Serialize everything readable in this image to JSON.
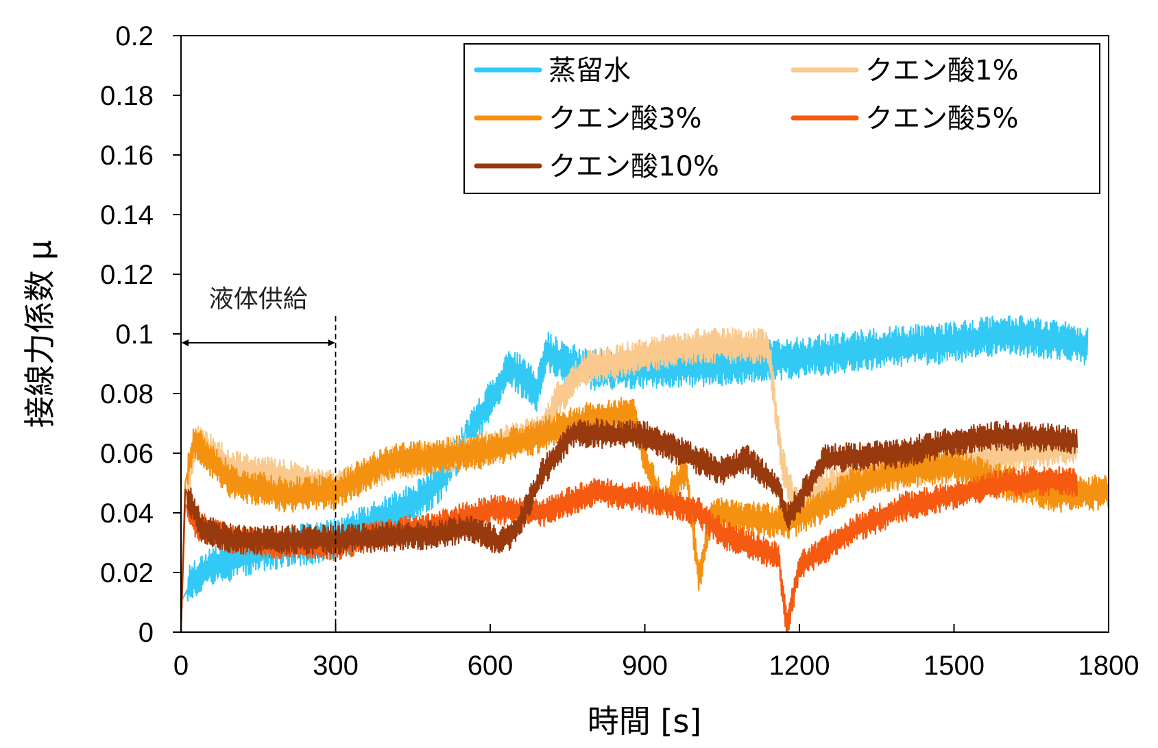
{
  "chart_data": {
    "type": "line",
    "xlabel": "時間 [s]",
    "ylabel": "接線力係数 μ",
    "xlim": [
      0,
      1800
    ],
    "ylim": [
      0,
      0.2
    ],
    "xticks": [
      "0",
      "300",
      "600",
      "900",
      "1200",
      "1500",
      "1800"
    ],
    "yticks": [
      "0",
      "0.02",
      "0.04",
      "0.06",
      "0.08",
      "0.1",
      "0.12",
      "0.14",
      "0.16",
      "0.18",
      "0.2"
    ],
    "grid": false,
    "legend_position": "top-right",
    "annotation": {
      "label": "液体供給",
      "x_start": 0,
      "x_end": 300,
      "y": 0.097
    },
    "series": [
      {
        "name": "蒸留水",
        "color": "#33c9f5",
        "noise": 0.007,
        "points": [
          [
            0,
            0.01
          ],
          [
            20,
            0.017
          ],
          [
            60,
            0.022
          ],
          [
            150,
            0.027
          ],
          [
            300,
            0.031
          ],
          [
            450,
            0.043
          ],
          [
            500,
            0.05
          ],
          [
            530,
            0.058
          ],
          [
            600,
            0.078
          ],
          [
            640,
            0.089
          ],
          [
            690,
            0.081
          ],
          [
            710,
            0.094
          ],
          [
            750,
            0.09
          ],
          [
            800,
            0.088
          ],
          [
            1000,
            0.089
          ],
          [
            1100,
            0.09
          ],
          [
            1200,
            0.092
          ],
          [
            1300,
            0.094
          ],
          [
            1400,
            0.096
          ],
          [
            1500,
            0.097
          ],
          [
            1600,
            0.1
          ],
          [
            1700,
            0.098
          ],
          [
            1760,
            0.096
          ]
        ]
      },
      {
        "name": "クエン酸1%",
        "color": "#f9c98e",
        "noise": 0.006,
        "points": [
          [
            0,
            0.0
          ],
          [
            8,
            0.045
          ],
          [
            30,
            0.064
          ],
          [
            100,
            0.055
          ],
          [
            200,
            0.052
          ],
          [
            300,
            0.048
          ],
          [
            400,
            0.056
          ],
          [
            500,
            0.059
          ],
          [
            600,
            0.062
          ],
          [
            700,
            0.067
          ],
          [
            730,
            0.078
          ],
          [
            780,
            0.088
          ],
          [
            900,
            0.093
          ],
          [
            1000,
            0.096
          ],
          [
            1140,
            0.096
          ],
          [
            1165,
            0.058
          ],
          [
            1190,
            0.043
          ],
          [
            1300,
            0.052
          ],
          [
            1500,
            0.056
          ],
          [
            1700,
            0.062
          ],
          [
            1740,
            0.062
          ]
        ]
      },
      {
        "name": "クエン酸3%",
        "color": "#f59110",
        "noise": 0.006,
        "points": [
          [
            0,
            0.0
          ],
          [
            8,
            0.05
          ],
          [
            25,
            0.064
          ],
          [
            100,
            0.05
          ],
          [
            200,
            0.046
          ],
          [
            300,
            0.047
          ],
          [
            400,
            0.057
          ],
          [
            500,
            0.059
          ],
          [
            600,
            0.061
          ],
          [
            700,
            0.066
          ],
          [
            800,
            0.072
          ],
          [
            880,
            0.073
          ],
          [
            900,
            0.058
          ],
          [
            935,
            0.043
          ],
          [
            980,
            0.055
          ],
          [
            1005,
            0.018
          ],
          [
            1030,
            0.04
          ],
          [
            1100,
            0.038
          ],
          [
            1180,
            0.037
          ],
          [
            1250,
            0.043
          ],
          [
            1300,
            0.049
          ],
          [
            1400,
            0.054
          ],
          [
            1500,
            0.056
          ],
          [
            1600,
            0.05
          ],
          [
            1700,
            0.046
          ],
          [
            1800,
            0.047
          ]
        ]
      },
      {
        "name": "クエン酸5%",
        "color": "#f55a10",
        "noise": 0.005,
        "points": [
          [
            0,
            0.0
          ],
          [
            8,
            0.043
          ],
          [
            30,
            0.036
          ],
          [
            100,
            0.031
          ],
          [
            200,
            0.029
          ],
          [
            300,
            0.029
          ],
          [
            400,
            0.033
          ],
          [
            500,
            0.036
          ],
          [
            600,
            0.041
          ],
          [
            700,
            0.04
          ],
          [
            800,
            0.047
          ],
          [
            900,
            0.045
          ],
          [
            1000,
            0.041
          ],
          [
            1050,
            0.033
          ],
          [
            1120,
            0.028
          ],
          [
            1160,
            0.025
          ],
          [
            1175,
            0.002
          ],
          [
            1200,
            0.022
          ],
          [
            1300,
            0.034
          ],
          [
            1400,
            0.042
          ],
          [
            1500,
            0.046
          ],
          [
            1600,
            0.05
          ],
          [
            1700,
            0.051
          ],
          [
            1740,
            0.05
          ]
        ]
      },
      {
        "name": "クエン酸10%",
        "color": "#99390e",
        "noise": 0.005,
        "points": [
          [
            0,
            0.0
          ],
          [
            8,
            0.048
          ],
          [
            40,
            0.035
          ],
          [
            100,
            0.031
          ],
          [
            200,
            0.031
          ],
          [
            300,
            0.031
          ],
          [
            400,
            0.032
          ],
          [
            500,
            0.033
          ],
          [
            560,
            0.035
          ],
          [
            620,
            0.03
          ],
          [
            650,
            0.034
          ],
          [
            700,
            0.053
          ],
          [
            760,
            0.067
          ],
          [
            900,
            0.066
          ],
          [
            1000,
            0.058
          ],
          [
            1050,
            0.054
          ],
          [
            1100,
            0.058
          ],
          [
            1160,
            0.048
          ],
          [
            1175,
            0.038
          ],
          [
            1250,
            0.058
          ],
          [
            1400,
            0.06
          ],
          [
            1500,
            0.064
          ],
          [
            1600,
            0.066
          ],
          [
            1700,
            0.065
          ],
          [
            1740,
            0.064
          ]
        ]
      }
    ]
  }
}
